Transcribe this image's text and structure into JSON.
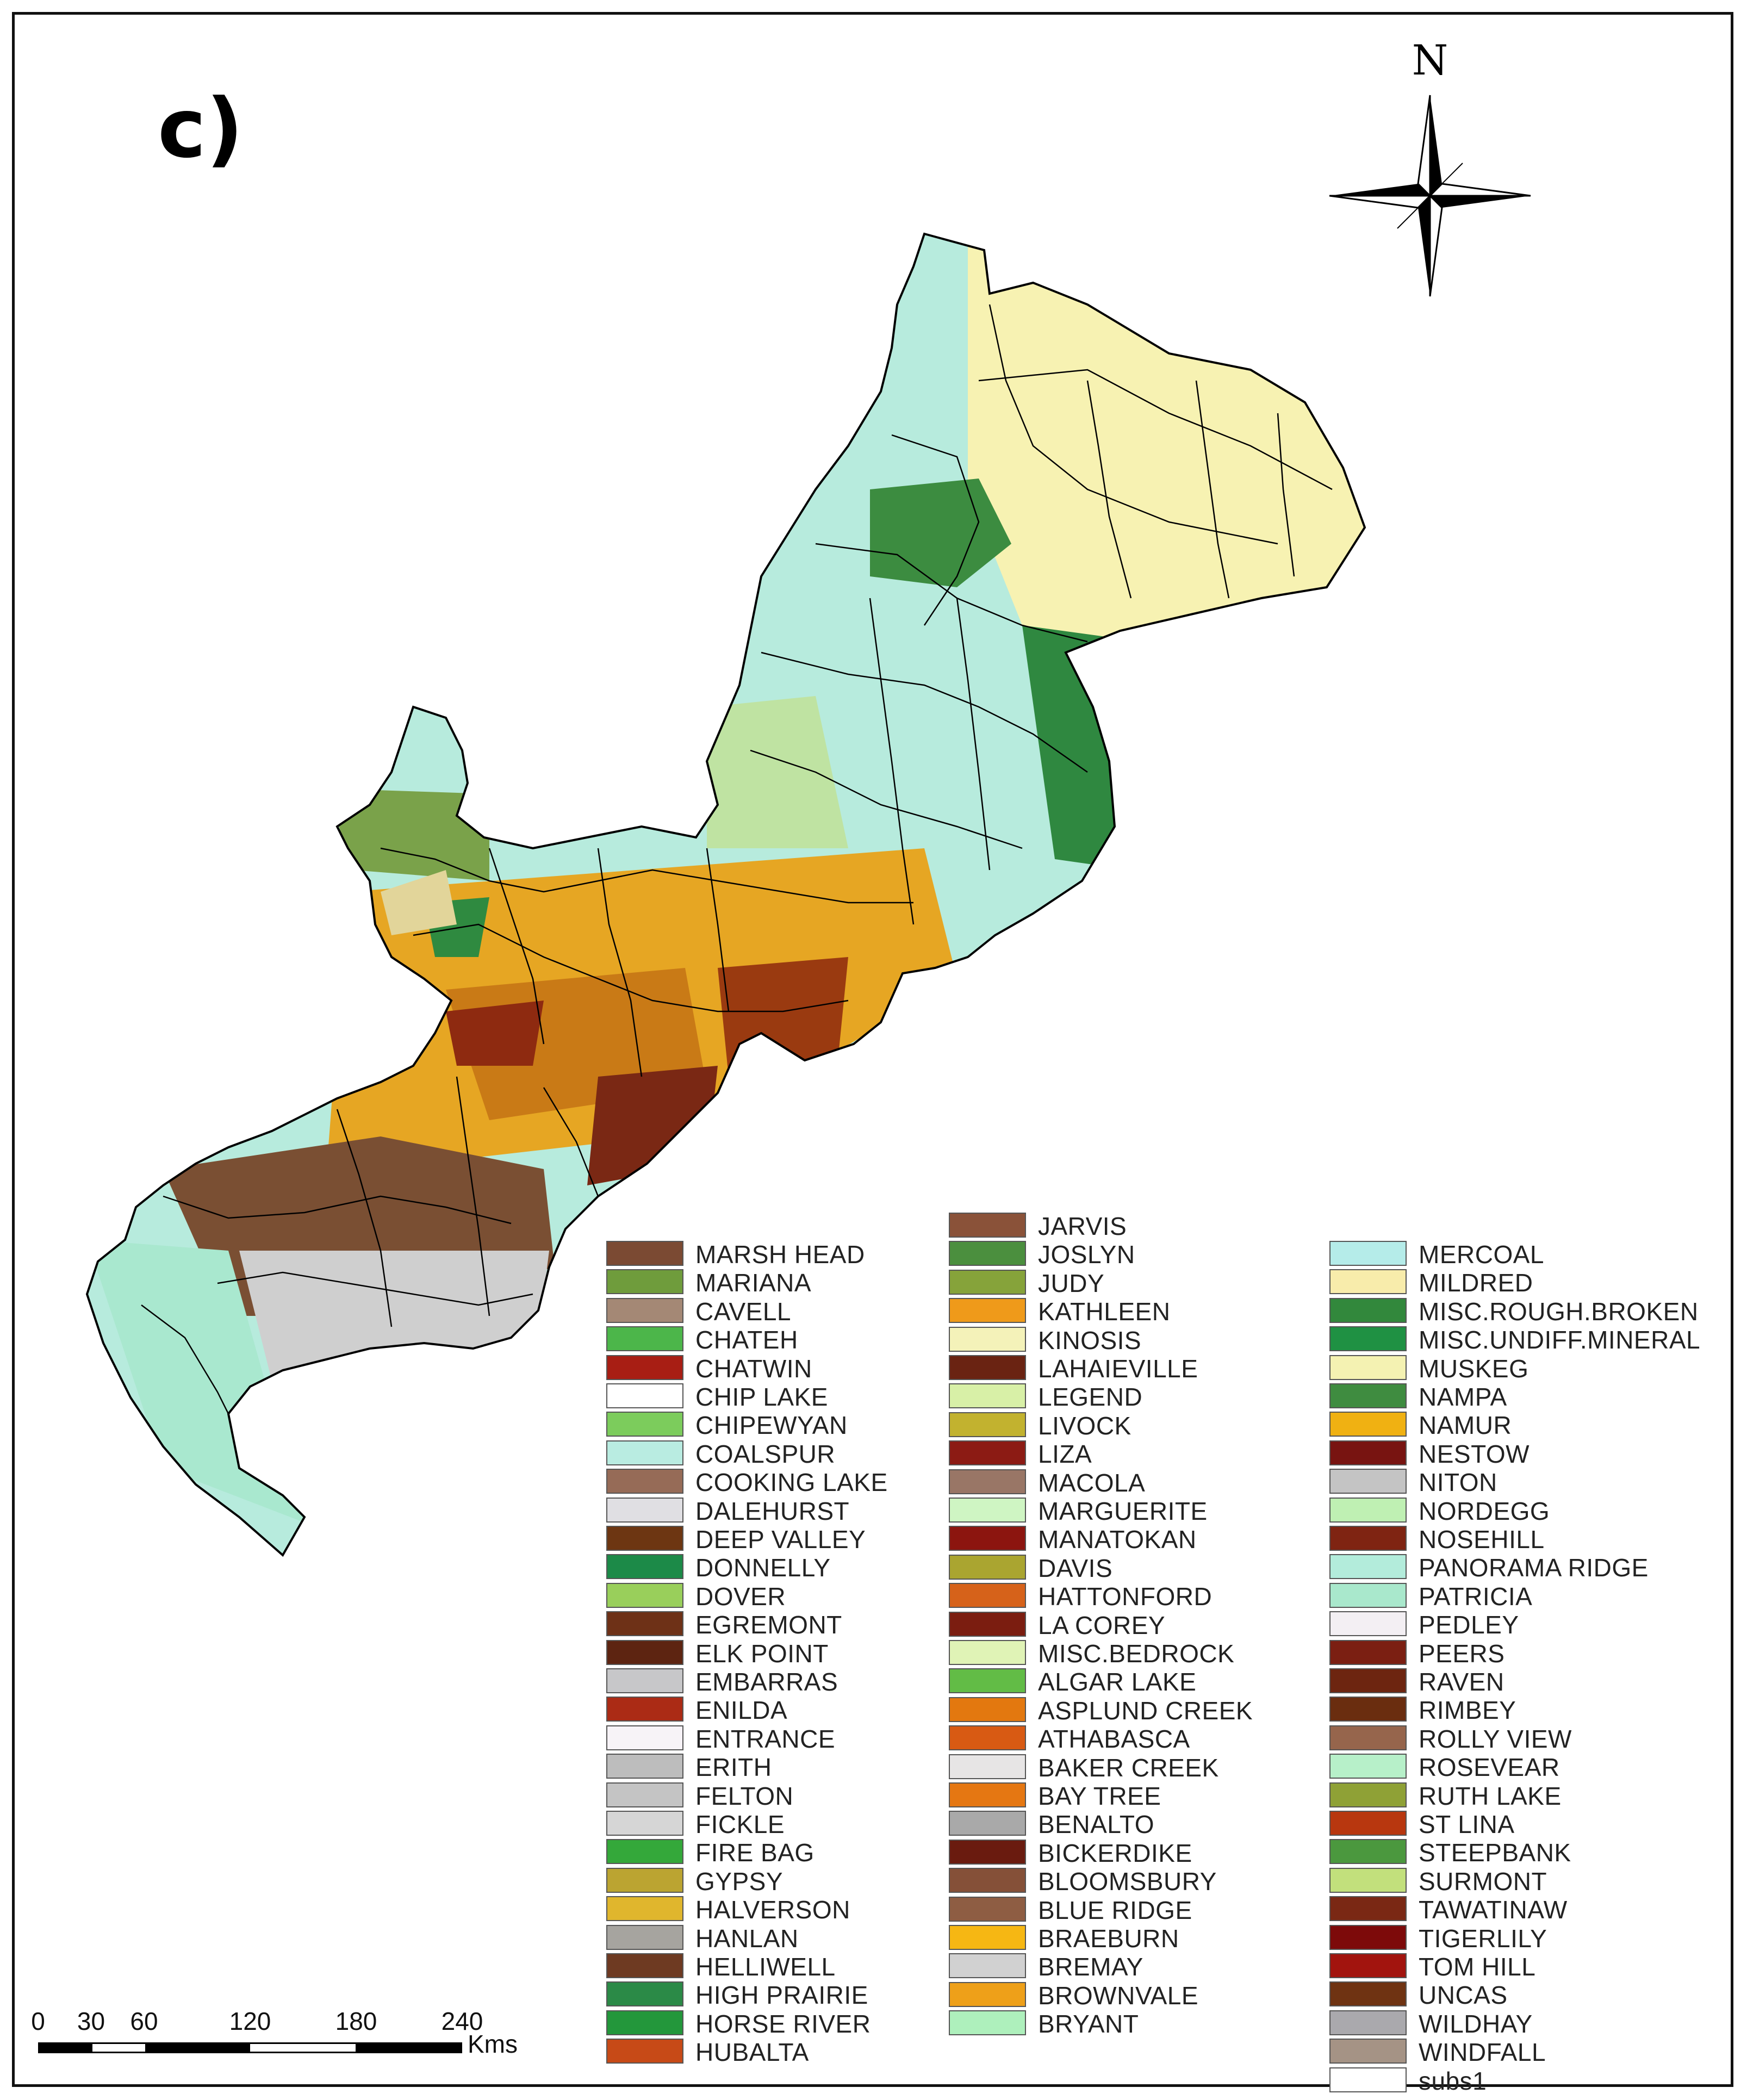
{
  "panel_label": "c)",
  "north_arrow": {
    "label": "N",
    "icon": "north-arrow-icon"
  },
  "scale_bar": {
    "ticks": [
      "0",
      "30",
      "60",
      "120",
      "180",
      "240"
    ],
    "tick_values": [
      0,
      30,
      60,
      120,
      180,
      240
    ],
    "unit": "Kms"
  },
  "map": {
    "boundary_color": "#000000",
    "zone_colors": {
      "northeast": "#f7f2b2",
      "north_central": "#b7ebdd",
      "east_forest": "#3c8c40",
      "central": "#e6a623",
      "central_dark": "#9a3a10",
      "southwest_brown": "#7a4f33",
      "southwest_grey": "#cfcfcf",
      "southwest_tip": "#a9e8cf"
    }
  },
  "legend": {
    "columns": [
      [
        {
          "label": "MARSH HEAD",
          "color": "#7b4a33"
        },
        {
          "label": "MARIANA",
          "color": "#6f9c3c"
        },
        {
          "label": "CAVELL",
          "color": "#a48875"
        },
        {
          "label": "CHATEH",
          "color": "#4cb64a"
        },
        {
          "label": "CHATWIN",
          "color": "#a81e14"
        },
        {
          "label": "CHIP LAKE",
          "color": "#ffffff"
        },
        {
          "label": "CHIPEWYAN",
          "color": "#7ccc5c"
        },
        {
          "label": "COALSPUR",
          "color": "#b9ece1"
        },
        {
          "label": "COOKING LAKE",
          "color": "#966b57"
        },
        {
          "label": "DALEHURST",
          "color": "#e0dfe3"
        },
        {
          "label": "DEEP VALLEY",
          "color": "#6d3612"
        },
        {
          "label": "DONNELLY",
          "color": "#1c8a48"
        },
        {
          "label": "DOVER",
          "color": "#99cf5b"
        },
        {
          "label": "EGREMONT",
          "color": "#6e3117"
        },
        {
          "label": "ELK POINT",
          "color": "#5d2411"
        },
        {
          "label": "EMBARRAS",
          "color": "#c7c7c9"
        },
        {
          "label": "ENILDA",
          "color": "#ab2b15"
        },
        {
          "label": "ENTRANCE",
          "color": "#f7f3f7"
        },
        {
          "label": "ERITH",
          "color": "#bdbdbd"
        },
        {
          "label": "FELTON",
          "color": "#c4c4c4"
        },
        {
          "label": "FICKLE",
          "color": "#d6d6d6"
        },
        {
          "label": "FIRE BAG",
          "color": "#34a83a"
        },
        {
          "label": "GYPSY",
          "color": "#bba431"
        },
        {
          "label": "HALVERSON",
          "color": "#e0b62d"
        },
        {
          "label": "HANLAN",
          "color": "#a6a49f"
        },
        {
          "label": "HELLIWELL",
          "color": "#6e3a22"
        },
        {
          "label": "HIGH PRAIRIE",
          "color": "#2b8a47"
        },
        {
          "label": "HORSE RIVER",
          "color": "#23973b"
        },
        {
          "label": "HUBALTA",
          "color": "#c74a17"
        }
      ],
      [
        {
          "label": "JARVIS",
          "color": "#8a5239"
        },
        {
          "label": "JOSLYN",
          "color": "#4b8f3e"
        },
        {
          "label": "JUDY",
          "color": "#86a33a"
        },
        {
          "label": "KATHLEEN",
          "color": "#ef9a1a"
        },
        {
          "label": "KINOSIS",
          "color": "#f4f2b9"
        },
        {
          "label": "LAHAIEVILLE",
          "color": "#6a2312"
        },
        {
          "label": "LEGEND",
          "color": "#d8f0a7"
        },
        {
          "label": "LIVOCK",
          "color": "#c2b22f"
        },
        {
          "label": "LIZA",
          "color": "#8c1b14"
        },
        {
          "label": "MACOLA",
          "color": "#997666"
        },
        {
          "label": "MARGUERITE",
          "color": "#cff5c3"
        },
        {
          "label": "MANATOKAN",
          "color": "#8c150f"
        },
        {
          "label": "DAVIS",
          "color": "#aaa530"
        },
        {
          "label": "HATTONFORD",
          "color": "#d6621a"
        },
        {
          "label": "LA COREY",
          "color": "#7b1d10"
        },
        {
          "label": "MISC.BEDROCK",
          "color": "#e0f3b6"
        },
        {
          "label": "ALGAR LAKE",
          "color": "#62bc46"
        },
        {
          "label": "ASPLUND CREEK",
          "color": "#e3780f"
        },
        {
          "label": "ATHABASCA",
          "color": "#d85a13"
        },
        {
          "label": "BAKER CREEK",
          "color": "#e7e5e5"
        },
        {
          "label": "BAY TREE",
          "color": "#e57712"
        },
        {
          "label": "BENALTO",
          "color": "#a9a9a9"
        },
        {
          "label": "BICKERDIKE",
          "color": "#6a1b0f"
        },
        {
          "label": "BLOOMSBURY",
          "color": "#855038"
        },
        {
          "label": "BLUE RIDGE",
          "color": "#8e5d43"
        },
        {
          "label": "BRAEBURN",
          "color": "#f6b713"
        },
        {
          "label": "BREMAY",
          "color": "#d1d1d1"
        },
        {
          "label": "BROWNVALE",
          "color": "#eea019"
        },
        {
          "label": "BRYANT",
          "color": "#aef0bc"
        }
      ],
      [
        {
          "label": "MERCOAL",
          "color": "#b5ece9"
        },
        {
          "label": "MILDRED",
          "color": "#f8ecab"
        },
        {
          "label": "MISC.ROUGH.BROKEN",
          "color": "#32883c"
        },
        {
          "label": "MISC.UNDIFF.MINERAL",
          "color": "#1f9143"
        },
        {
          "label": "MUSKEG",
          "color": "#f4f2b2"
        },
        {
          "label": "NAMPA",
          "color": "#3f8c40"
        },
        {
          "label": "NAMUR",
          "color": "#f0b112"
        },
        {
          "label": "NESTOW",
          "color": "#781411"
        },
        {
          "label": "NITON",
          "color": "#c4c4c4"
        },
        {
          "label": "NORDEGG",
          "color": "#bff0b3"
        },
        {
          "label": "NOSEHILL",
          "color": "#7f2412"
        },
        {
          "label": "PANORAMA RIDGE",
          "color": "#b3ecdb"
        },
        {
          "label": "PATRICIA",
          "color": "#a9e8cc"
        },
        {
          "label": "PEDLEY",
          "color": "#f3eff3"
        },
        {
          "label": "PEERS",
          "color": "#7b1f12"
        },
        {
          "label": "RAVEN",
          "color": "#6d2510"
        },
        {
          "label": "RIMBEY",
          "color": "#6a2d0f"
        },
        {
          "label": "ROLLY VIEW",
          "color": "#96654c"
        },
        {
          "label": "ROSEVEAR",
          "color": "#b7f0c9"
        },
        {
          "label": "RUTH LAKE",
          "color": "#8fa136"
        },
        {
          "label": "ST LINA",
          "color": "#b8370f"
        },
        {
          "label": "STEEPBANK",
          "color": "#4b983e"
        },
        {
          "label": "SURMONT",
          "color": "#c2e07c"
        },
        {
          "label": "TAWATINAW",
          "color": "#7a2814"
        },
        {
          "label": "TIGERLILY",
          "color": "#7d0a0a"
        },
        {
          "label": "TOM HILL",
          "color": "#a2140e"
        },
        {
          "label": "UNCAS",
          "color": "#6f3312"
        },
        {
          "label": "WILDHAY",
          "color": "#aaa9ad"
        },
        {
          "label": "WINDFALL",
          "color": "#a59385"
        },
        {
          "label": "subs1",
          "color": "#ffffff"
        }
      ]
    ]
  }
}
